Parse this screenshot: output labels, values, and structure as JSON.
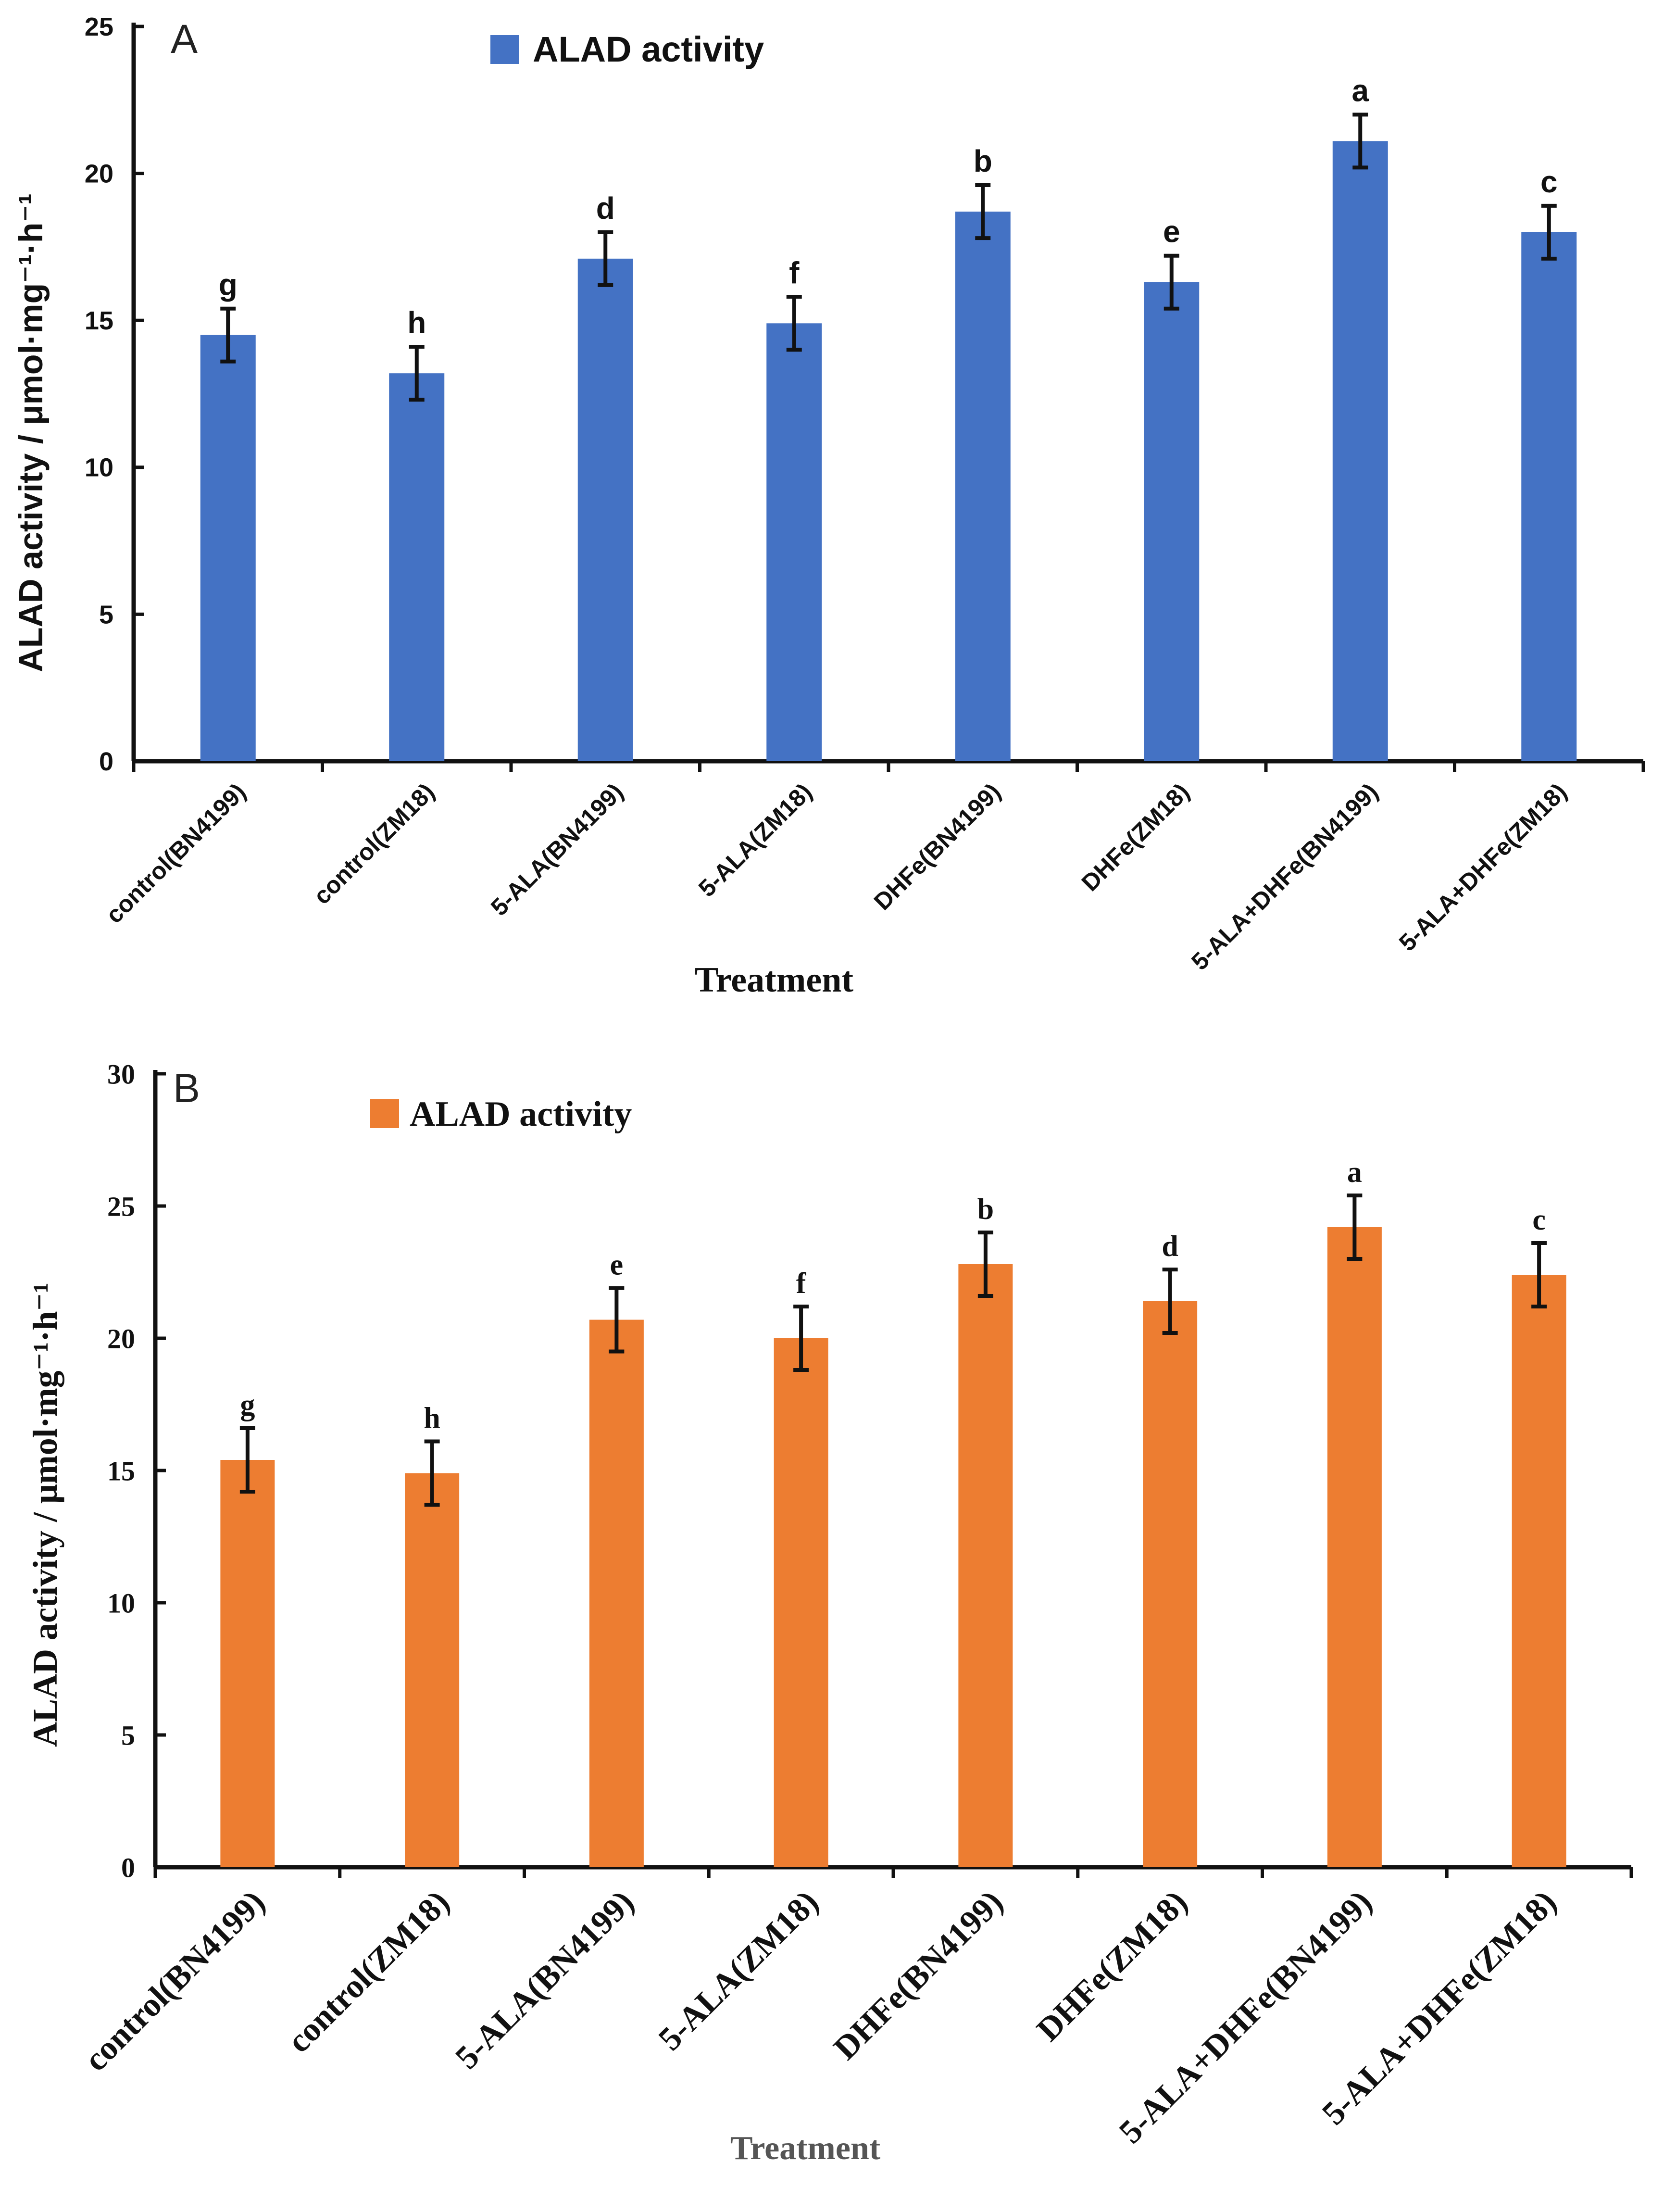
{
  "chart_data": [
    {
      "type": "bar",
      "panel_label": "A",
      "categories": [
        "control(BN4199)",
        "control(ZM18)",
        "5-ALA(BN4199)",
        "5-ALA(ZM18)",
        "DHFe(BN4199)",
        "DHFe(ZM18)",
        "5-ALA+DHFe(BN4199)",
        "5-ALA+DHFe(ZM18)"
      ],
      "series": [
        {
          "name": "ALAD activity",
          "color": "#4472c4",
          "values": [
            14.5,
            13.2,
            17.1,
            14.9,
            18.7,
            16.3,
            21.1,
            18.0
          ],
          "errors": [
            0.9,
            0.9,
            0.9,
            0.9,
            0.9,
            0.9,
            0.9,
            0.9
          ],
          "letters": [
            "g",
            "h",
            "d",
            "f",
            "b",
            "e",
            "a",
            "c"
          ]
        }
      ],
      "xlabel": "Treatment",
      "ylabel": "ALAD activity / μmol·mg⁻¹·h⁻¹",
      "ylim": [
        0,
        25
      ],
      "yticks": [
        "0",
        "5",
        "10",
        "15",
        "20",
        "25"
      ],
      "legend": "top-center",
      "grid": false
    },
    {
      "type": "bar",
      "panel_label": "B",
      "categories": [
        "control(BN4199)",
        "control(ZM18)",
        "5-ALA(BN4199)",
        "5-ALA(ZM18)",
        "DHFe(BN4199)",
        "DHFe(ZM18)",
        "5-ALA+DHFe(BN4199)",
        "5-ALA+DHFe(ZM18)"
      ],
      "series": [
        {
          "name": "ALAD activity",
          "color": "#ed7d31",
          "values": [
            15.4,
            14.9,
            20.7,
            20.0,
            22.8,
            21.4,
            24.2,
            22.4
          ],
          "errors": [
            1.2,
            1.2,
            1.2,
            1.2,
            1.2,
            1.2,
            1.2,
            1.2
          ],
          "letters": [
            "g",
            "h",
            "e",
            "f",
            "b",
            "d",
            "a",
            "c"
          ]
        }
      ],
      "xlabel": "Treatment",
      "ylabel": "ALAD activity / μmol·mg⁻¹·h⁻¹",
      "ylim": [
        0,
        30
      ],
      "yticks": [
        "0",
        "5",
        "10",
        "15",
        "20",
        "25",
        "30"
      ],
      "legend": "top-left",
      "grid": false
    }
  ]
}
